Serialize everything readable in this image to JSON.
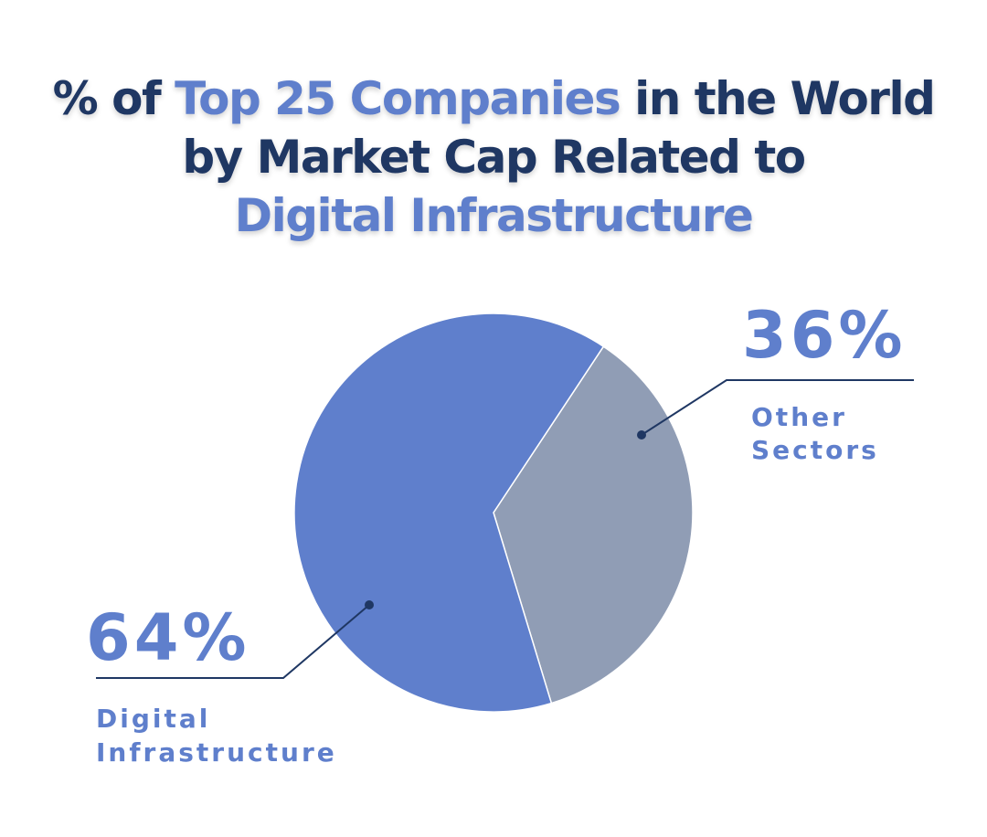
{
  "title": {
    "prefix": "% of ",
    "accent_1": "Top 25 Companies",
    "middle_1": " in the World",
    "line_2": "by Market Cap Related to",
    "accent_2": "Digital Infrastructure"
  },
  "colors": {
    "title_dark": "#1f3763",
    "accent": "#5f7fcc",
    "slice_digital": "#5f7fcc",
    "slice_other": "#909db5",
    "leader": "#1f3763"
  },
  "chart_data": {
    "type": "pie",
    "title": "% of Top 25 Companies in the World by Market Cap Related to Digital Infrastructure",
    "slices": [
      {
        "name": "Other Sectors",
        "value": 36,
        "display": "36%",
        "label_lines": [
          "Other",
          "Sectors"
        ],
        "color": "#909db5"
      },
      {
        "name": "Digital Infrastructure",
        "value": 64,
        "display": "64%",
        "label_lines": [
          "Digital",
          "Infrastructure"
        ],
        "color": "#5f7fcc"
      }
    ]
  }
}
